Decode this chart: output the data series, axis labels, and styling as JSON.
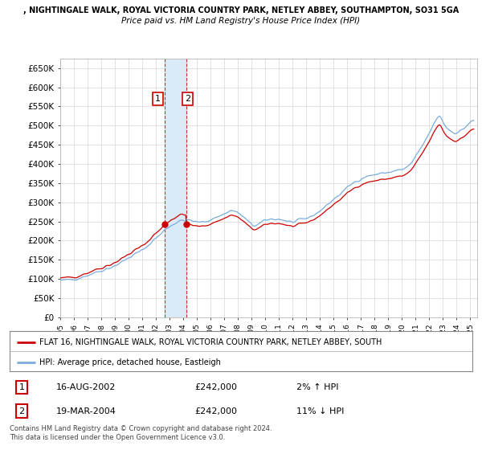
{
  "title_line1": ", NIGHTINGALE WALK, ROYAL VICTORIA COUNTRY PARK, NETLEY ABBEY, SOUTHAMPTON, SO31 5GA",
  "title_line2": "Price paid vs. HM Land Registry's House Price Index (HPI)",
  "ylabel_ticks": [
    "£0",
    "£50K",
    "£100K",
    "£150K",
    "£200K",
    "£250K",
    "£300K",
    "£350K",
    "£400K",
    "£450K",
    "£500K",
    "£550K",
    "£600K",
    "£650K"
  ],
  "ytick_values": [
    0,
    50000,
    100000,
    150000,
    200000,
    250000,
    300000,
    350000,
    400000,
    450000,
    500000,
    550000,
    600000,
    650000
  ],
  "ylim": [
    0,
    675000
  ],
  "sale1_year": 2002.625,
  "sale1_price": 242000,
  "sale2_year": 2004.208,
  "sale2_price": 242000,
  "legend_property": "FLAT 16, NIGHTINGALE WALK, ROYAL VICTORIA COUNTRY PARK, NETLEY ABBEY, SOUTH",
  "legend_hpi": "HPI: Average price, detached house, Eastleigh",
  "table_row1": [
    "1",
    "16-AUG-2002",
    "£242,000",
    "2% ↑ HPI"
  ],
  "table_row2": [
    "2",
    "19-MAR-2004",
    "£242,000",
    "11% ↓ HPI"
  ],
  "footnote": "Contains HM Land Registry data © Crown copyright and database right 2024.\nThis data is licensed under the Open Government Licence v3.0.",
  "property_color": "#cc0000",
  "hpi_color": "#7aaddc",
  "shade_color": "#daeaf7",
  "vline_color": "#cc0000",
  "background_color": "#ffffff",
  "grid_color": "#dddddd"
}
